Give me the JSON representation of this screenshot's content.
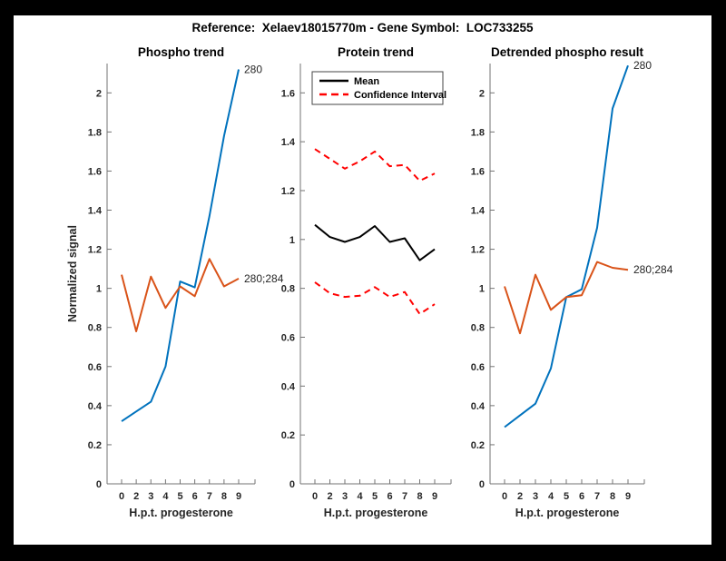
{
  "figure": {
    "title": "Reference:  Xelaev18015770m - Gene Symbol:  LOC733255"
  },
  "colors": {
    "blue": "#0072BD",
    "orange": "#D95319",
    "red": "#FF0000",
    "black": "#000000",
    "axis": "#737373",
    "text": "#262626",
    "background": "#000000",
    "canvas": "#FFFFFF"
  },
  "chart_data": [
    {
      "type": "line",
      "title": "Phospho trend",
      "xlabel": "H.p.t. progesterone",
      "ylabel": "Normalized signal",
      "x_tick_labels": [
        "0",
        "2",
        "3",
        "4",
        "5",
        "6",
        "7",
        "8",
        "9"
      ],
      "ylim": [
        0,
        2.15
      ],
      "yticks": [
        0,
        0.2,
        0.4,
        0.6,
        0.8,
        1,
        1.2,
        1.4,
        1.6,
        1.8,
        2
      ],
      "grid": false,
      "series": [
        {
          "name": "280",
          "color": "#0072BD",
          "style": "solid",
          "end_label": "280",
          "values": [
            0.32,
            0.37,
            0.42,
            0.6,
            1.035,
            1.005,
            1.37,
            1.78,
            2.12
          ]
        },
        {
          "name": "280;284",
          "color": "#D95319",
          "style": "solid",
          "end_label": "280;284",
          "values": [
            1.07,
            0.78,
            1.06,
            0.9,
            1.01,
            0.96,
            1.15,
            1.01,
            1.05
          ]
        }
      ]
    },
    {
      "type": "line",
      "title": "Protein trend",
      "xlabel": "H.p.t. progesterone",
      "x_tick_labels": [
        "0",
        "2",
        "3",
        "4",
        "5",
        "6",
        "7",
        "8",
        "9"
      ],
      "ylim": [
        0,
        1.72
      ],
      "yticks": [
        0,
        0.2,
        0.4,
        0.6,
        0.8,
        1,
        1.2,
        1.4,
        1.6
      ],
      "grid": false,
      "legend_position": "top-left",
      "legend": [
        {
          "label": "Mean",
          "color": "#000000",
          "style": "solid"
        },
        {
          "label": "Confidence Interval",
          "color": "#FF0000",
          "style": "dashed"
        }
      ],
      "series": [
        {
          "name": "Mean",
          "color": "#000000",
          "style": "solid",
          "values": [
            1.06,
            1.01,
            0.99,
            1.01,
            1.055,
            0.99,
            1.005,
            0.915,
            0.96
          ]
        },
        {
          "name": "CI upper",
          "color": "#FF0000",
          "style": "dashed",
          "values": [
            1.37,
            1.33,
            1.29,
            1.32,
            1.36,
            1.3,
            1.305,
            1.24,
            1.27
          ]
        },
        {
          "name": "CI lower",
          "color": "#FF0000",
          "style": "dashed",
          "values": [
            0.825,
            0.78,
            0.765,
            0.77,
            0.805,
            0.765,
            0.785,
            0.695,
            0.735
          ]
        }
      ]
    },
    {
      "type": "line",
      "title": "Detrended phospho result",
      "xlabel": "H.p.t. progesterone",
      "x_tick_labels": [
        "0",
        "2",
        "3",
        "4",
        "5",
        "6",
        "7",
        "8",
        "9"
      ],
      "ylim": [
        0,
        2.15
      ],
      "yticks": [
        0,
        0.2,
        0.4,
        0.6,
        0.8,
        1,
        1.2,
        1.4,
        1.6,
        1.8,
        2
      ],
      "grid": false,
      "series": [
        {
          "name": "280",
          "color": "#0072BD",
          "style": "solid",
          "end_label": "280",
          "values": [
            0.29,
            0.35,
            0.41,
            0.59,
            0.955,
            0.995,
            1.31,
            1.92,
            2.14
          ]
        },
        {
          "name": "280;284",
          "color": "#D95319",
          "style": "solid",
          "end_label": "280;284",
          "values": [
            1.01,
            0.77,
            1.07,
            0.89,
            0.955,
            0.965,
            1.135,
            1.105,
            1.095
          ]
        }
      ]
    }
  ]
}
